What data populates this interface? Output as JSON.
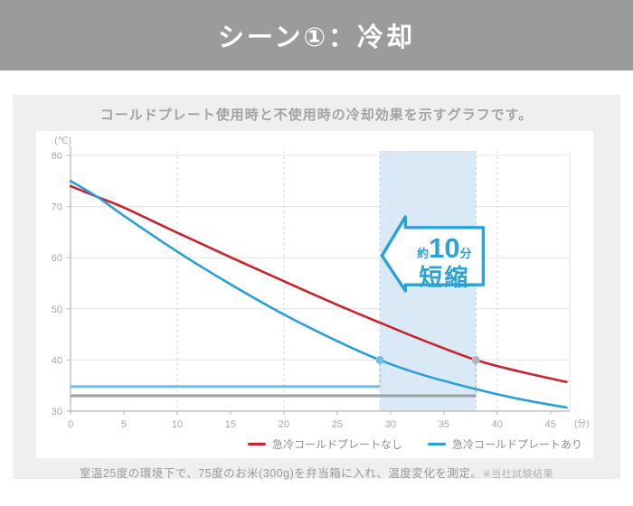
{
  "header": {
    "title": "シーン①：冷却"
  },
  "card": {
    "subtitle": "コールドプレート使用時と不使用時の冷却効果を示すグラフです。",
    "caption": "室温25度の環境下で、75度のお米(300g)を弁当箱に入れ、温度変化を測定。",
    "caption_note": "※当社試験結果"
  },
  "chart_data": {
    "type": "line",
    "title": "",
    "y_unit_label": "(℃)",
    "x_unit_label": "(分)",
    "xlim": [
      0,
      46.8
    ],
    "ylim": [
      30,
      80
    ],
    "x_ticks": [
      0,
      5,
      10,
      15,
      20,
      25,
      30,
      35,
      40,
      45
    ],
    "y_ticks": [
      30,
      40,
      50,
      60,
      70,
      80
    ],
    "grid": {
      "horizontal": "solid",
      "vertical_dashed_at": [
        10,
        20,
        30,
        40
      ]
    },
    "series": [
      {
        "name": "急冷コールドプレートなし",
        "color": "#c8232f",
        "x": [
          0,
          2.5,
          5,
          10,
          15,
          20,
          25,
          29,
          33,
          38,
          42,
          46.5
        ],
        "y": [
          74,
          71.9,
          69.8,
          64.9,
          60.1,
          55.4,
          50.8,
          47.3,
          43.9,
          40,
          37.8,
          35.7
        ]
      },
      {
        "name": "急冷コールドプレートあり",
        "color": "#2b9fd4",
        "x": [
          0,
          2.5,
          5,
          10,
          15,
          20,
          25,
          29,
          33,
          38,
          42,
          46.5
        ],
        "y": [
          75,
          71.9,
          68.2,
          61.2,
          54.8,
          48.9,
          43.7,
          40,
          37.1,
          34.3,
          32.4,
          30.7
        ]
      }
    ],
    "highlight_band": {
      "x_start": 29,
      "x_end": 38,
      "color": "#d9eaf6",
      "edge_dash_color": "#c2d3de"
    },
    "reference_bars": [
      {
        "y": 34.8,
        "x_start": 0,
        "x_end": 29,
        "color": "#74bede"
      },
      {
        "y": 33.0,
        "x_start": 0,
        "x_end": 38,
        "color": "#9fa4a6"
      }
    ],
    "markers": [
      {
        "x": 29,
        "y": 40,
        "drop_to": 34.8,
        "color": "#72bfe0"
      },
      {
        "x": 38,
        "y": 40,
        "drop_to": 33.0,
        "color": "#b3b6b8"
      }
    ],
    "annotation": {
      "text_prefix": "約",
      "text_value": "10",
      "text_unit": "分",
      "text_label": "短縮",
      "color": "#2ba2d6",
      "x_tip": 29.2,
      "x_head": 31.4,
      "x_tail": 38.7,
      "y_center": 60.4,
      "y_head_top": 68.0,
      "y_head_bottom": 53.5,
      "y_tail_top": 65.9,
      "y_tail_bottom": 54.7
    },
    "legend": [
      {
        "label": "急冷コールドプレートなし",
        "color": "#c8232f"
      },
      {
        "label": "急冷コールドプレートあり",
        "color": "#2b9fd4"
      }
    ],
    "legend_position": "bottom-right"
  }
}
